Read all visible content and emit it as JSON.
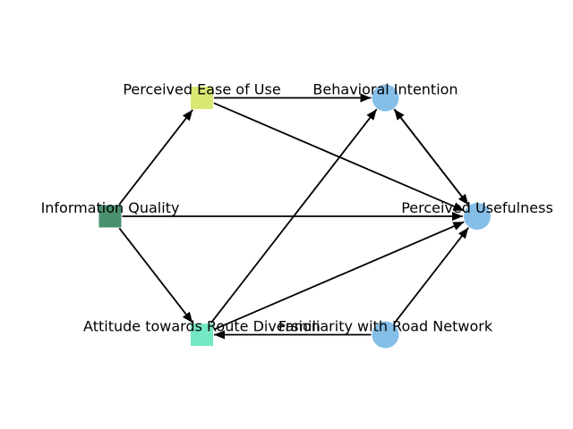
{
  "diagram": {
    "nodes": [
      {
        "id": "peou",
        "label": "Perceived Ease of Use",
        "shape": "square",
        "color": "#d9e872"
      },
      {
        "id": "bi",
        "label": "Behavioral Intention",
        "shape": "circle",
        "color": "#85bfe8"
      },
      {
        "id": "iq",
        "label": "Information Quality",
        "shape": "square",
        "color": "#4a9170"
      },
      {
        "id": "pu",
        "label": "Perceived Usefulness",
        "shape": "circle",
        "color": "#85bfe8"
      },
      {
        "id": "atrd",
        "label": "Attitude towards Route Diversion",
        "shape": "square",
        "color": "#74e8c4"
      },
      {
        "id": "frn",
        "label": "Familiarity with Road Network",
        "shape": "circle",
        "color": "#85bfe8"
      }
    ],
    "edges": [
      {
        "from": "peou",
        "to": "bi"
      },
      {
        "from": "peou",
        "to": "pu"
      },
      {
        "from": "iq",
        "to": "peou"
      },
      {
        "from": "iq",
        "to": "pu"
      },
      {
        "from": "iq",
        "to": "atrd"
      },
      {
        "from": "atrd",
        "to": "bi"
      },
      {
        "from": "atrd",
        "to": "pu"
      },
      {
        "from": "frn",
        "to": "atrd"
      },
      {
        "from": "frn",
        "to": "pu"
      },
      {
        "from": "pu",
        "to": "bi"
      },
      {
        "from": "bi",
        "to": "pu"
      }
    ]
  }
}
